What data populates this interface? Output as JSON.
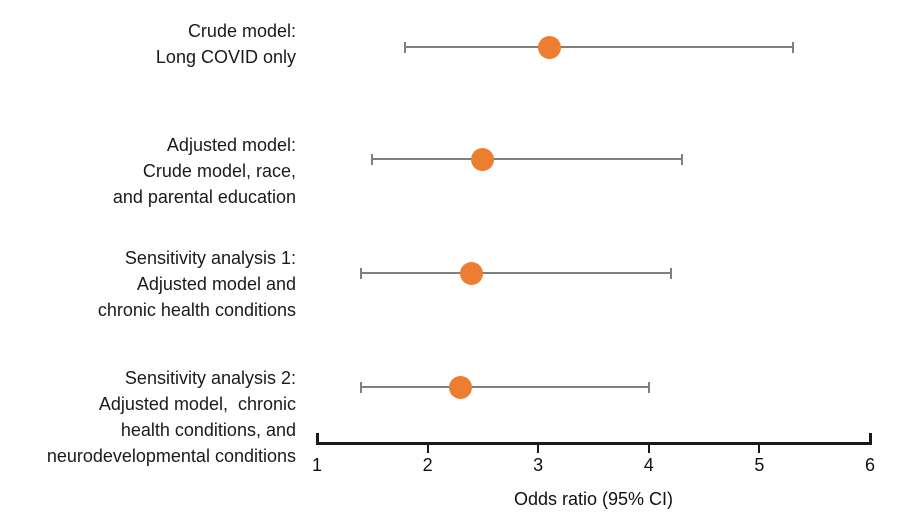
{
  "chart_data": {
    "type": "scatter",
    "subtype": "forest-plot",
    "title": "",
    "xlabel": "Odds ratio (95% CI)",
    "ylabel": "",
    "xlim": [
      1,
      6
    ],
    "xticks": [
      "1",
      "2",
      "3",
      "4",
      "5",
      "6"
    ],
    "grid": false,
    "legend": "none",
    "rows": [
      {
        "label_lines": [
          "Crude model:",
          "Long COVID only"
        ],
        "odds_ratio": 3.1,
        "ci_low": 1.8,
        "ci_high": 5.3
      },
      {
        "label_lines": [
          "Adjusted model:",
          "Crude model, race,",
          "and parental education"
        ],
        "odds_ratio": 2.5,
        "ci_low": 1.5,
        "ci_high": 4.3
      },
      {
        "label_lines": [
          "Sensitivity analysis 1:",
          "Adjusted model and",
          "chronic health conditions"
        ],
        "odds_ratio": 2.4,
        "ci_low": 1.4,
        "ci_high": 4.2
      },
      {
        "label_lines": [
          "Sensitivity analysis 2:",
          "Adjusted model,  chronic",
          "health conditions, and",
          "neurodevelopmental conditions"
        ],
        "odds_ratio": 2.3,
        "ci_low": 1.4,
        "ci_high": 4.0
      }
    ],
    "colors": {
      "marker": "#ED7D31",
      "ci_line": "#7F7F7F",
      "axis": "#1A1A1A",
      "text": "#1A1A1A"
    }
  }
}
